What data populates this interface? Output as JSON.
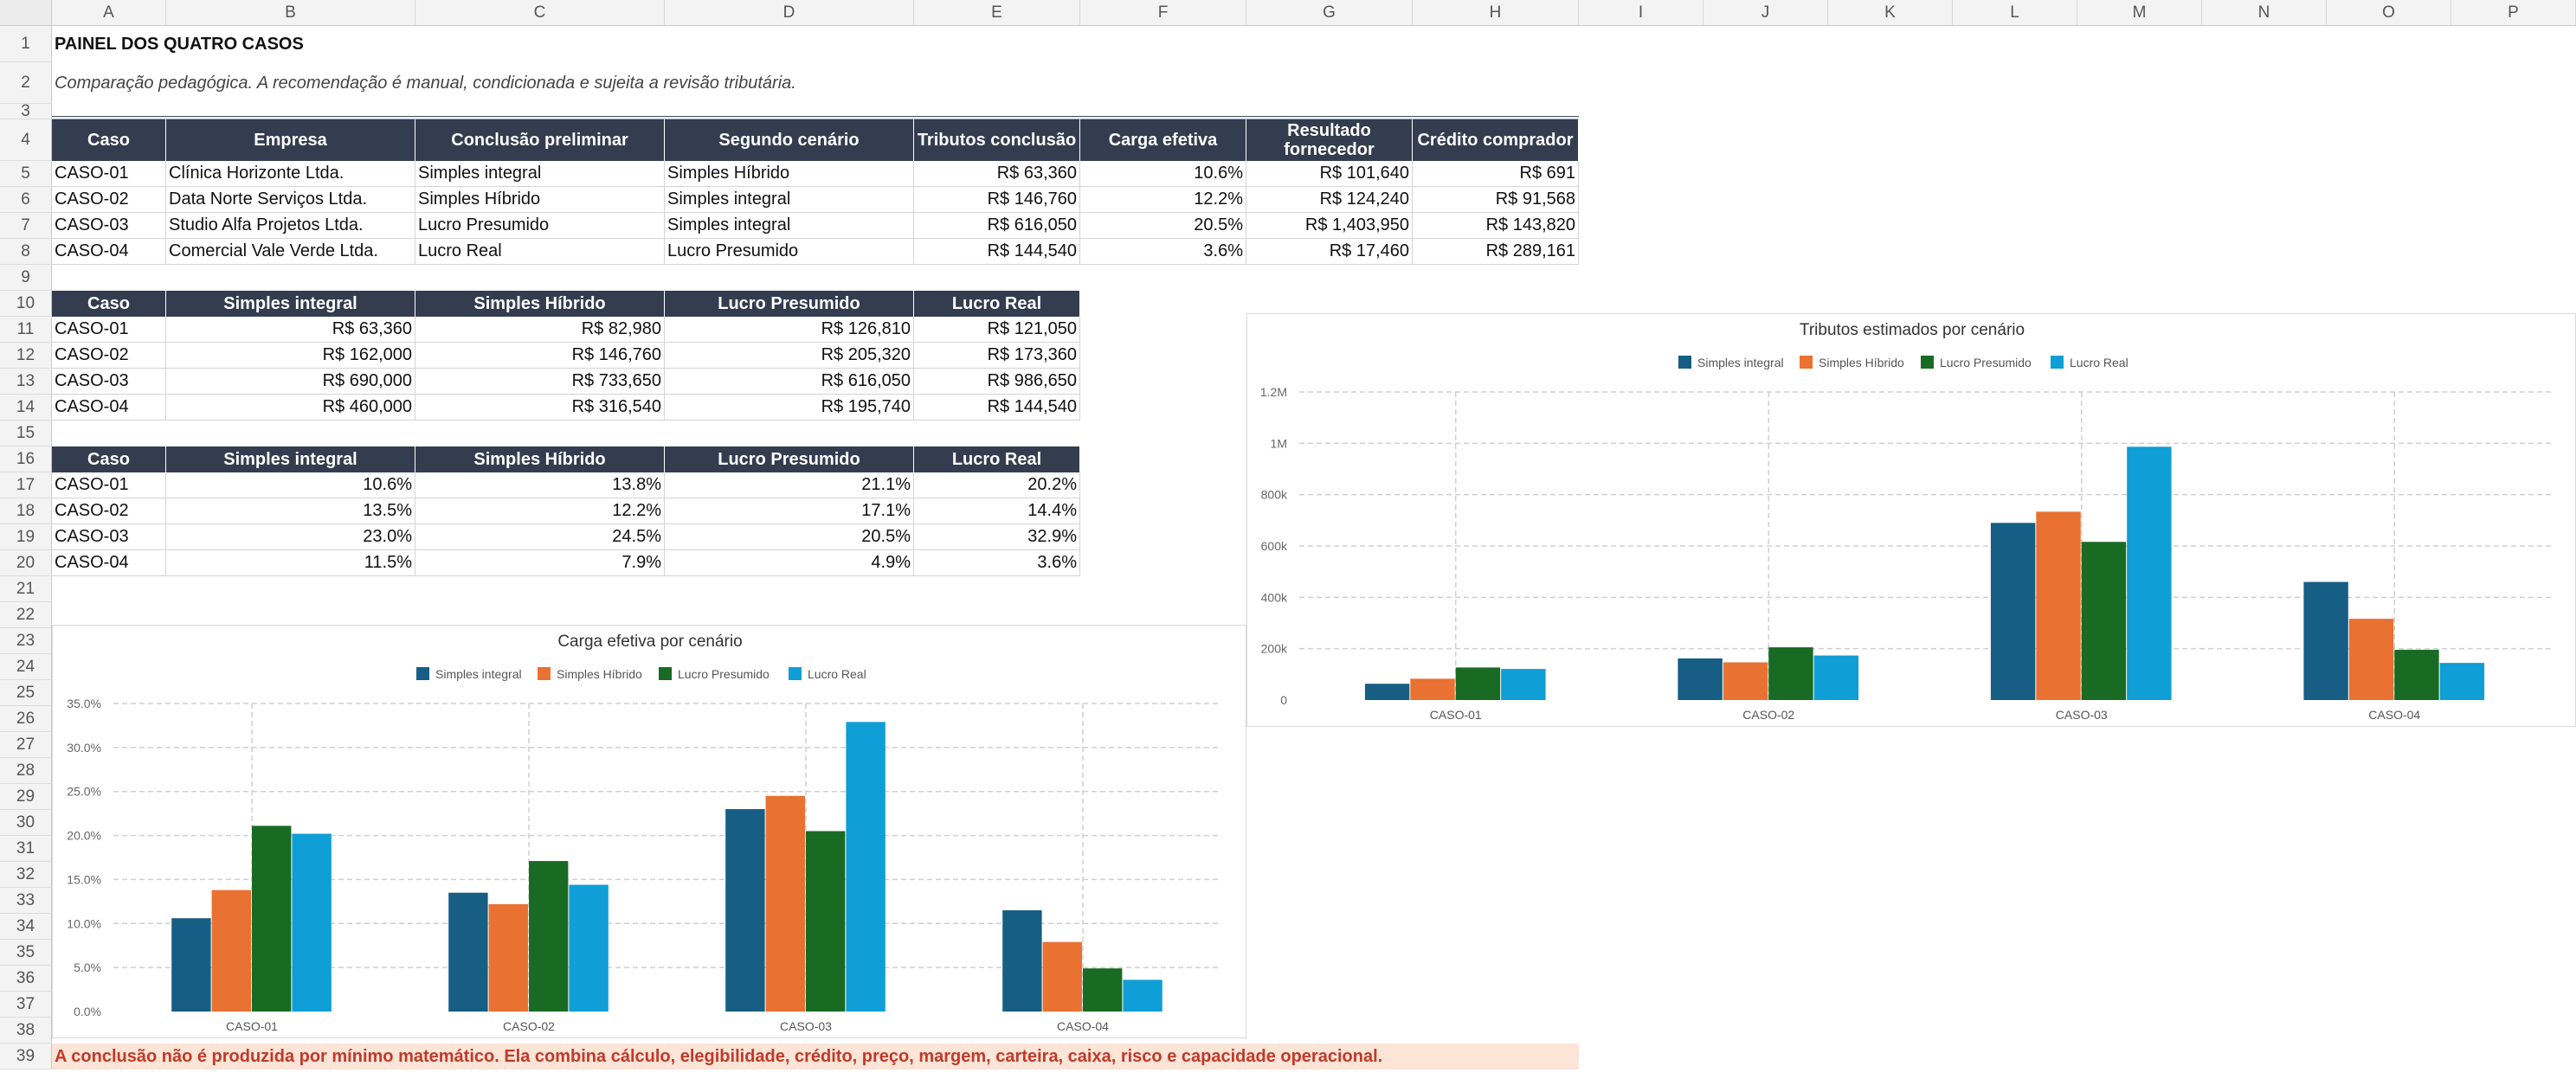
{
  "columns": [
    "A",
    "B",
    "C",
    "D",
    "E",
    "F",
    "G",
    "H",
    "I",
    "J",
    "K",
    "L",
    "M",
    "N",
    "O",
    "P"
  ],
  "rows": [
    "1",
    "2",
    "3",
    "4",
    "5",
    "6",
    "7",
    "8",
    "9",
    "10",
    "11",
    "12",
    "13",
    "14",
    "15",
    "16",
    "17",
    "18",
    "19",
    "20",
    "21",
    "22",
    "23",
    "24",
    "25",
    "26",
    "27",
    "28",
    "29",
    "30",
    "31",
    "32",
    "33",
    "34",
    "35",
    "36",
    "37",
    "38",
    "39"
  ],
  "sheet": {
    "title": "PAINEL DOS QUATRO CASOS",
    "subtitle": "Comparação pedagógica. A recomendação é manual, condicionada e sujeita a revisão tributária.",
    "note": "A conclusão não é produzida por mínimo matemático. Ela combina cálculo, elegibilidade, crédito, preço, margem, carteira, caixa, risco e capacidade operacional."
  },
  "summary_table": {
    "headers": [
      "Caso",
      "Empresa",
      "Conclusão preliminar",
      "Segundo cenário",
      "Tributos conclusão",
      "Carga efetiva",
      "Resultado fornecedor",
      "Crédito comprador"
    ],
    "rows": [
      [
        "CASO-01",
        "Clínica Horizonte Ltda.",
        "Simples integral",
        "Simples Híbrido",
        "R$ 63,360",
        "10.6%",
        "R$ 101,640",
        "R$ 691"
      ],
      [
        "CASO-02",
        "Data Norte Serviços Ltda.",
        "Simples Híbrido",
        "Simples integral",
        "R$ 146,760",
        "12.2%",
        "R$ 124,240",
        "R$ 91,568"
      ],
      [
        "CASO-03",
        "Studio Alfa Projetos Ltda.",
        "Lucro Presumido",
        "Simples integral",
        "R$ 616,050",
        "20.5%",
        "R$ 1,403,950",
        "R$ 143,820"
      ],
      [
        "CASO-04",
        "Comercial Vale Verde Ltda.",
        "Lucro Real",
        "Lucro Presumido",
        "R$ 144,540",
        "3.6%",
        "R$ 17,460",
        "R$ 289,161"
      ]
    ]
  },
  "taxes_table": {
    "headers": [
      "Caso",
      "Simples integral",
      "Simples Híbrido",
      "Lucro Presumido",
      "Lucro Real"
    ],
    "rows": [
      [
        "CASO-01",
        "R$ 63,360",
        "R$ 82,980",
        "R$ 126,810",
        "R$ 121,050"
      ],
      [
        "CASO-02",
        "R$ 162,000",
        "R$ 146,760",
        "R$ 205,320",
        "R$ 173,360"
      ],
      [
        "CASO-03",
        "R$ 690,000",
        "R$ 733,650",
        "R$ 616,050",
        "R$ 986,650"
      ],
      [
        "CASO-04",
        "R$ 460,000",
        "R$ 316,540",
        "R$ 195,740",
        "R$ 144,540"
      ]
    ]
  },
  "burden_table": {
    "headers": [
      "Caso",
      "Simples integral",
      "Simples Híbrido",
      "Lucro Presumido",
      "Lucro Real"
    ],
    "rows": [
      [
        "CASO-01",
        "10.6%",
        "13.8%",
        "21.1%",
        "20.2%"
      ],
      [
        "CASO-02",
        "13.5%",
        "12.2%",
        "17.1%",
        "14.4%"
      ],
      [
        "CASO-03",
        "23.0%",
        "24.5%",
        "20.5%",
        "32.9%"
      ],
      [
        "CASO-04",
        "11.5%",
        "7.9%",
        "4.9%",
        "3.6%"
      ]
    ]
  },
  "series_colors": [
    "#165e83",
    "#e97132",
    "#196b24",
    "#0f9ed5"
  ],
  "chart_data": [
    {
      "type": "bar",
      "title": "Tributos estimados por cenário",
      "categories": [
        "CASO-01",
        "CASO-02",
        "CASO-03",
        "CASO-04"
      ],
      "series": [
        {
          "name": "Simples integral",
          "values": [
            63360,
            162000,
            690000,
            460000
          ]
        },
        {
          "name": "Simples Híbrido",
          "values": [
            82980,
            146760,
            733650,
            316540
          ]
        },
        {
          "name": "Lucro Presumido",
          "values": [
            126810,
            205320,
            616050,
            195740
          ]
        },
        {
          "name": "Lucro Real",
          "values": [
            121050,
            173360,
            986650,
            144540
          ]
        }
      ],
      "ylim": [
        0,
        1200000
      ],
      "yticks": [
        0,
        200000,
        400000,
        600000,
        800000,
        1000000,
        1200000
      ],
      "ytick_labels": [
        "0",
        "200k",
        "400k",
        "600k",
        "800k",
        "1M",
        "1.2M"
      ],
      "legend": "top",
      "grid": true
    },
    {
      "type": "bar",
      "title": "Carga efetiva por cenário",
      "categories": [
        "CASO-01",
        "CASO-02",
        "CASO-03",
        "CASO-04"
      ],
      "series": [
        {
          "name": "Simples integral",
          "values": [
            10.6,
            13.5,
            23.0,
            11.5
          ]
        },
        {
          "name": "Simples Híbrido",
          "values": [
            13.8,
            12.2,
            24.5,
            7.9
          ]
        },
        {
          "name": "Lucro Presumido",
          "values": [
            21.1,
            17.1,
            20.5,
            4.9
          ]
        },
        {
          "name": "Lucro Real",
          "values": [
            20.2,
            14.4,
            32.9,
            3.6
          ]
        }
      ],
      "ylim": [
        0,
        35
      ],
      "yticks": [
        0,
        5,
        10,
        15,
        20,
        25,
        30,
        35
      ],
      "ytick_labels": [
        "0.0%",
        "5.0%",
        "10.0%",
        "15.0%",
        "20.0%",
        "25.0%",
        "30.0%",
        "35.0%"
      ],
      "legend": "top",
      "grid": true
    }
  ]
}
